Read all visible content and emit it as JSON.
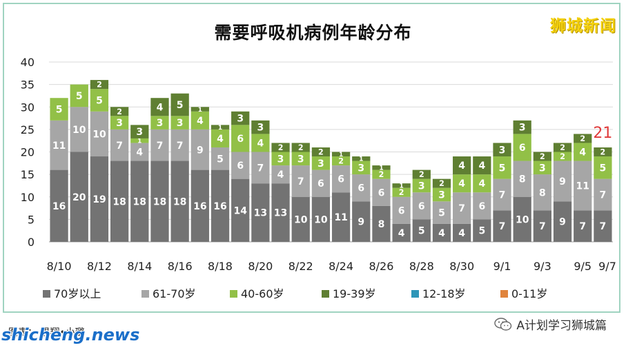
{
  "title": "需要呼吸机病例年龄分布",
  "watermark_top_right": "狮城新闻",
  "footer": {
    "caption": "图表：  黒翔•小璐",
    "site_watermark": "shicheng.news",
    "wechat_label": "A计划学习狮城篇"
  },
  "colors": {
    "over70": "#737373",
    "61_70": "#a6a6a6",
    "40_60": "#92c047",
    "19_39": "#5f7f32",
    "12_18": "#2e96b8",
    "0_11": "#e0843c",
    "callout": "#e03a3a"
  },
  "chart_data": {
    "type": "bar",
    "stacked": true,
    "title": "需要呼吸机病例年龄分布",
    "ylim": [
      0,
      40
    ],
    "yticks": [
      0,
      5,
      10,
      15,
      20,
      25,
      30,
      35,
      40
    ],
    "grid": true,
    "legend_position": "bottom",
    "x_tick_labels": [
      "8/10",
      "8/12",
      "8/14",
      "8/16",
      "8/18",
      "8/20",
      "8/22",
      "8/24",
      "8/26",
      "8/28",
      "8/30",
      "9/1",
      "9/3",
      "9/5",
      "9/7"
    ],
    "categories": [
      "8/10",
      "8/11",
      "8/12",
      "8/13",
      "8/14",
      "8/15",
      "8/16",
      "8/17",
      "8/18",
      "8/19",
      "8/20",
      "8/21",
      "8/22",
      "8/23",
      "8/24",
      "8/25",
      "8/26",
      "8/27",
      "8/28",
      "8/29",
      "8/30",
      "8/31",
      "9/1",
      "9/2",
      "9/3",
      "9/4",
      "9/5",
      "9/6"
    ],
    "series": [
      {
        "name": "70岁以上",
        "color_key": "over70",
        "values": [
          16,
          20,
          19,
          18,
          18,
          18,
          18,
          16,
          16,
          14,
          13,
          13,
          10,
          10,
          11,
          9,
          8,
          4,
          5,
          4,
          4,
          5,
          7,
          10,
          7,
          9,
          7,
          7
        ]
      },
      {
        "name": "61-70岁",
        "color_key": "61_70",
        "values": [
          11,
          10,
          10,
          7,
          4,
          7,
          7,
          9,
          5,
          6,
          7,
          4,
          7,
          6,
          6,
          6,
          6,
          6,
          6,
          5,
          7,
          6,
          7,
          8,
          8,
          9,
          11,
          7
        ]
      },
      {
        "name": "40-60岁",
        "color_key": "40_60",
        "values": [
          5,
          5,
          5,
          3,
          1,
          3,
          3,
          4,
          4,
          6,
          4,
          3,
          3,
          3,
          2,
          3,
          2,
          2,
          3,
          3,
          4,
          4,
          5,
          6,
          3,
          2,
          4,
          5
        ]
      },
      {
        "name": "19-39岁",
        "color_key": "19_39",
        "values": [
          0,
          0,
          2,
          2,
          3,
          4,
          5,
          1,
          1,
          3,
          3,
          2,
          2,
          2,
          1,
          1,
          1,
          1,
          2,
          2,
          4,
          4,
          3,
          3,
          2,
          2,
          2,
          2
        ]
      },
      {
        "name": "12-18岁",
        "color_key": "12_18",
        "values": [
          0,
          0,
          0,
          0,
          0,
          0,
          0,
          0,
          0,
          0,
          0,
          0,
          0,
          0,
          0,
          0,
          0,
          0,
          0,
          0,
          0,
          0,
          0,
          0,
          0,
          0,
          0,
          0
        ]
      },
      {
        "name": "0-11岁",
        "color_key": "0_11",
        "values": [
          0,
          0,
          0,
          0,
          0,
          0,
          0,
          0,
          0,
          0,
          0,
          0,
          0,
          0,
          0,
          0,
          0,
          0,
          0,
          0,
          0,
          0,
          0,
          0,
          0,
          0,
          0,
          0
        ]
      }
    ],
    "annotation": {
      "category": "9/6",
      "text": "21"
    }
  }
}
